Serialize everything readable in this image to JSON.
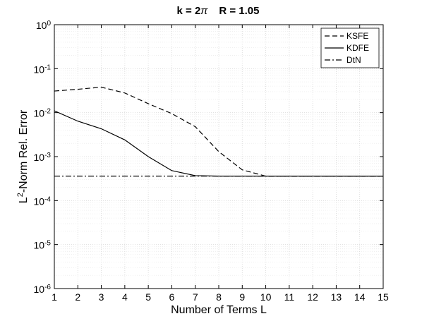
{
  "chart_data": {
    "type": "line",
    "title": {
      "k": "k = 2",
      "pi": "π",
      "r": "R = 1.05"
    },
    "xlabel": "Number of Terms L",
    "ylabel": {
      "pre": "L",
      "sup": "2",
      "post": "-Norm Rel. Error"
    },
    "xlim": [
      1,
      15
    ],
    "ylim_exponents": [
      -6,
      0
    ],
    "y_scale": "log",
    "grid": true,
    "minor_grid": true,
    "legend_position": "top-right",
    "x_ticks": [
      "1",
      "2",
      "3",
      "4",
      "5",
      "6",
      "7",
      "8",
      "9",
      "10",
      "11",
      "12",
      "13",
      "14",
      "15"
    ],
    "y_ticks": [
      {
        "base": "10",
        "exp": "-6",
        "value": 1e-06
      },
      {
        "base": "10",
        "exp": "-5",
        "value": 1e-05
      },
      {
        "base": "10",
        "exp": "-4",
        "value": 0.0001
      },
      {
        "base": "10",
        "exp": "-3",
        "value": 0.001
      },
      {
        "base": "10",
        "exp": "-2",
        "value": 0.01
      },
      {
        "base": "10",
        "exp": "-1",
        "value": 0.1
      },
      {
        "base": "10",
        "exp": "0",
        "value": 1
      }
    ],
    "series": [
      {
        "name": "KSFE",
        "style": "dashed",
        "x": [
          1,
          2,
          3,
          4,
          5,
          6,
          7,
          8,
          9,
          10,
          11,
          12,
          13,
          14,
          15
        ],
        "y": [
          0.031,
          0.034,
          0.038,
          0.028,
          0.016,
          0.0095,
          0.0048,
          0.0013,
          0.0005,
          0.00036,
          0.00036,
          0.00036,
          0.00036,
          0.00036,
          0.00036
        ]
      },
      {
        "name": "KDFE",
        "style": "solid",
        "x": [
          1,
          2,
          3,
          4,
          5,
          6,
          7,
          8,
          9,
          10,
          11,
          12,
          13,
          14,
          15
        ],
        "y": [
          0.011,
          0.0064,
          0.0043,
          0.0024,
          0.001,
          0.00048,
          0.00037,
          0.00036,
          0.00036,
          0.00036,
          0.00036,
          0.00036,
          0.00036,
          0.00036,
          0.00036
        ]
      },
      {
        "name": "DtN",
        "style": "dashdot",
        "x": [
          1,
          15
        ],
        "y": [
          0.00036,
          0.00036
        ]
      }
    ],
    "colors": {
      "line": "#000000",
      "grid": "#d9d9d9",
      "minor_grid": "#ececec",
      "background": "#ffffff"
    }
  }
}
